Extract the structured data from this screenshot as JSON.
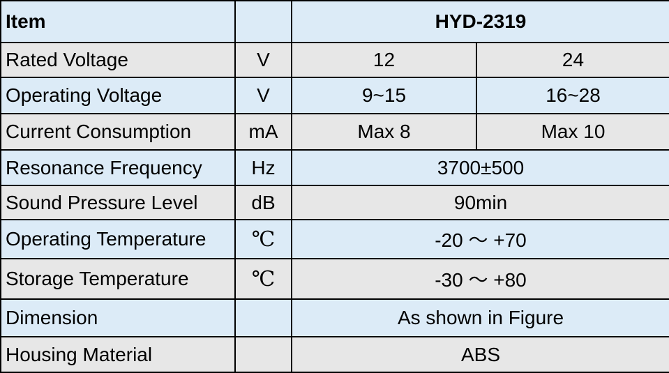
{
  "table": {
    "header": {
      "item": "Item",
      "model": "HYD-2319"
    },
    "rows": [
      {
        "label": "Rated Voltage",
        "unit": "V",
        "values": [
          "12",
          "24"
        ]
      },
      {
        "label": "Operating Voltage",
        "unit": "V",
        "values": [
          "9~15",
          "16~28"
        ]
      },
      {
        "label": "Current Consumption",
        "unit": "mA",
        "values": [
          "Max 8",
          "Max 10"
        ]
      },
      {
        "label": "Resonance Frequency",
        "unit": "Hz",
        "values": [
          "3700±500"
        ]
      },
      {
        "label": "Sound Pressure Level",
        "unit": "dB",
        "values": [
          "90min"
        ]
      },
      {
        "label": "Operating Temperature",
        "unit": "℃",
        "values": [
          "-20 ～ +70"
        ]
      },
      {
        "label": "Storage Temperature",
        "unit": "℃",
        "values": [
          "-30 ～ +80"
        ]
      },
      {
        "label": "Dimension",
        "values": [
          "As shown in Figure"
        ]
      },
      {
        "label": "Housing Material",
        "values": [
          "ABS"
        ]
      }
    ]
  }
}
